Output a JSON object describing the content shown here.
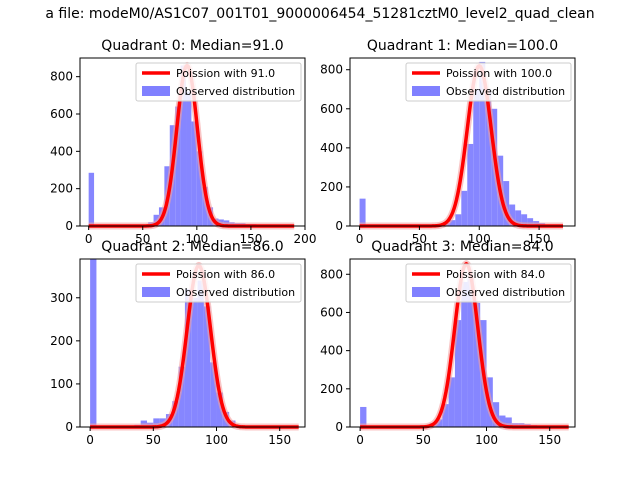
{
  "figure": {
    "suptitle": "a file: modeM0/AS1C07_001T01_9000006454_51281cztM0_level2_quad_clean"
  },
  "colors": {
    "poisson": "#ff0000",
    "poisson_halo": "#f5a0a0",
    "histogram": "#8080ff",
    "axes": "#000000"
  },
  "chart_data": [
    {
      "type": "bar",
      "title": "Quadrant 0: Median=91.0",
      "xlim": [
        -8,
        200
      ],
      "ylim": [
        0,
        900
      ],
      "xticks": [
        0,
        50,
        100,
        150,
        200
      ],
      "yticks": [
        0,
        200,
        400,
        600,
        800
      ],
      "xtick_labels": [
        "0",
        "50",
        "100",
        "150",
        "200"
      ],
      "ytick_labels": [
        "0",
        "200",
        "400",
        "600",
        "800"
      ],
      "legend_position": "upper right",
      "series": [
        {
          "name": "Poission with 91.0",
          "type": "line",
          "color": "#ff0000",
          "lambda": 91.0,
          "peak": 860,
          "x_range": [
            0,
            190
          ]
        },
        {
          "name": "Observed distribution",
          "type": "histogram",
          "color": "#8080ff",
          "bin_width": 5,
          "x": [
            0,
            55,
            60,
            65,
            70,
            75,
            80,
            85,
            90,
            95,
            100,
            105,
            110,
            115,
            120,
            125,
            130,
            135,
            140,
            145,
            150,
            155
          ],
          "values": [
            285,
            20,
            60,
            100,
            320,
            540,
            640,
            860,
            720,
            560,
            400,
            210,
            100,
            40,
            35,
            30,
            20,
            15,
            15,
            10,
            10,
            5
          ]
        }
      ]
    },
    {
      "type": "bar",
      "title": "Quadrant 1: Median=100.0",
      "xlim": [
        -8,
        180
      ],
      "ylim": [
        0,
        860
      ],
      "xticks": [
        0,
        50,
        100,
        150
      ],
      "yticks": [
        0,
        200,
        400,
        600,
        800
      ],
      "xtick_labels": [
        "0",
        "50",
        "100",
        "150"
      ],
      "ytick_labels": [
        "0",
        "200",
        "400",
        "600",
        "800"
      ],
      "legend_position": "upper right",
      "series": [
        {
          "name": "Poission with 100.0",
          "type": "line",
          "color": "#ff0000",
          "lambda": 100.0,
          "peak": 820,
          "x_range": [
            0,
            170
          ]
        },
        {
          "name": "Observed distribution",
          "type": "histogram",
          "color": "#8080ff",
          "bin_width": 5,
          "x": [
            0,
            70,
            75,
            80,
            85,
            90,
            95,
            100,
            105,
            110,
            115,
            120,
            125,
            130,
            135,
            140,
            145,
            150
          ],
          "values": [
            140,
            15,
            30,
            60,
            180,
            420,
            700,
            840,
            700,
            600,
            360,
            230,
            110,
            80,
            60,
            40,
            25,
            15
          ]
        }
      ]
    },
    {
      "type": "bar",
      "title": "Quadrant 2: Median=86.0",
      "xlim": [
        -8,
        170
      ],
      "ylim": [
        0,
        390
      ],
      "xticks": [
        0,
        50,
        100,
        150
      ],
      "yticks": [
        0,
        100,
        200,
        300
      ],
      "xtick_labels": [
        "0",
        "50",
        "100",
        "150"
      ],
      "ytick_labels": [
        "0",
        "100",
        "200",
        "300"
      ],
      "legend_position": "upper right",
      "series": [
        {
          "name": "Poission with 86.0",
          "type": "line",
          "color": "#ff0000",
          "lambda": 86.0,
          "peak": 375,
          "x_range": [
            0,
            165
          ]
        },
        {
          "name": "Observed distribution",
          "type": "histogram",
          "color": "#8080ff",
          "bin_width": 5,
          "x": [
            0,
            35,
            40,
            45,
            50,
            55,
            60,
            65,
            70,
            75,
            80,
            85,
            90,
            95,
            100,
            105,
            110,
            115
          ],
          "values": [
            390,
            5,
            15,
            10,
            20,
            20,
            30,
            60,
            140,
            320,
            300,
            340,
            280,
            150,
            80,
            35,
            15,
            5
          ]
        }
      ]
    },
    {
      "type": "bar",
      "title": "Quadrant 3: Median=84.0",
      "xlim": [
        -8,
        170
      ],
      "ylim": [
        0,
        880
      ],
      "xticks": [
        0,
        50,
        100,
        150
      ],
      "yticks": [
        0,
        200,
        400,
        600,
        800
      ],
      "xtick_labels": [
        "0",
        "50",
        "100",
        "150"
      ],
      "ytick_labels": [
        "0",
        "200",
        "400",
        "600",
        "800"
      ],
      "legend_position": "upper right",
      "series": [
        {
          "name": "Poission with 84.0",
          "type": "line",
          "color": "#ff0000",
          "lambda": 84.0,
          "peak": 855,
          "x_range": [
            0,
            165
          ]
        },
        {
          "name": "Observed distribution",
          "type": "histogram",
          "color": "#8080ff",
          "bin_width": 5,
          "x": [
            0,
            55,
            60,
            65,
            70,
            75,
            80,
            85,
            90,
            95,
            100,
            105,
            110,
            115,
            120,
            125,
            130,
            135,
            140
          ],
          "values": [
            105,
            20,
            40,
            120,
            260,
            560,
            760,
            780,
            650,
            560,
            260,
            130,
            60,
            50,
            20,
            20,
            15,
            10,
            5
          ]
        }
      ]
    }
  ]
}
